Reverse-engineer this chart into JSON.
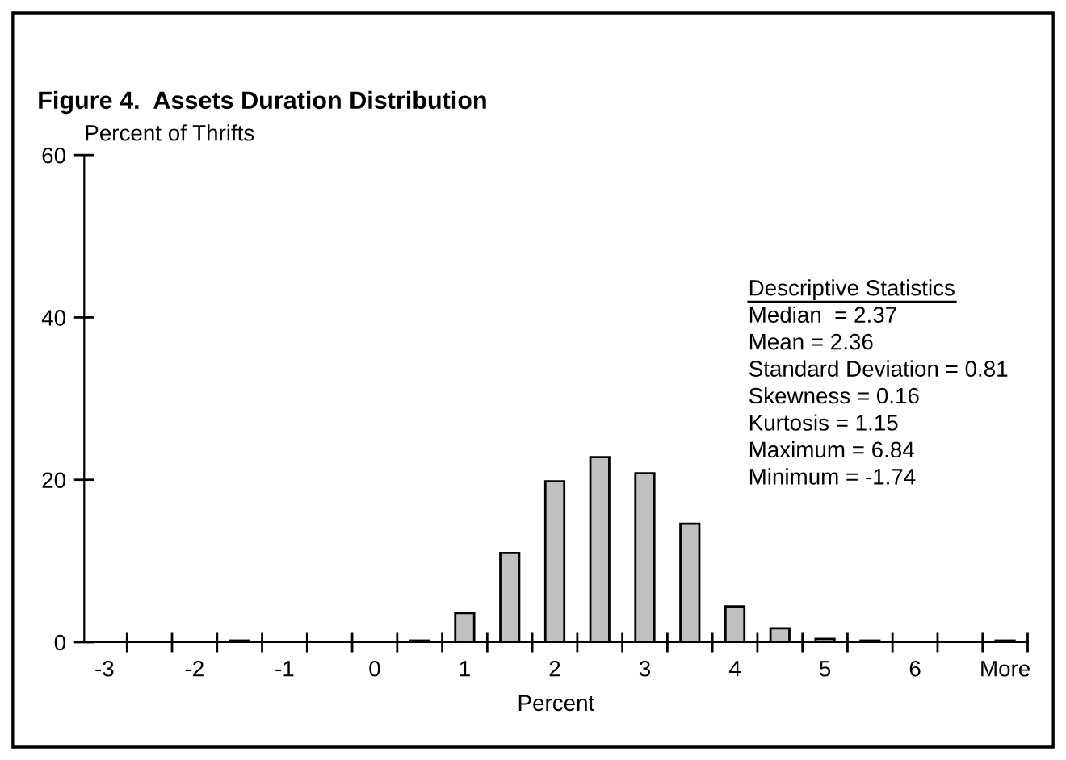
{
  "chart_data": {
    "type": "bar",
    "title": "Figure 4.  Assets Duration Distribution",
    "xlabel": "Percent",
    "ylabel": "Percent of Thrifts",
    "categories": [
      "-3",
      null,
      "-2",
      null,
      "-1",
      null,
      "0",
      null,
      "1",
      null,
      "2",
      null,
      "3",
      null,
      "4",
      null,
      "5",
      null,
      "6",
      null,
      "More"
    ],
    "values": [
      0,
      0,
      0,
      0.2,
      0,
      0,
      0,
      0.2,
      3.6,
      11,
      19.8,
      22.8,
      20.8,
      14.6,
      4.4,
      1.7,
      0.4,
      0.2,
      0,
      0,
      0.2
    ],
    "color": "#c0c0c0",
    "ylim": [
      0,
      60
    ],
    "yticks": [
      0,
      20,
      40,
      60
    ],
    "grid": false,
    "legend": false,
    "annotations": [
      "Descriptive Statistics",
      "Median  = 2.37",
      "Mean = 2.36",
      "Standard Deviation = 0.81",
      "Skewness = 0.16",
      "Kurtosis = 1.15",
      "Maximum = 6.84",
      "Minimum = -1.74"
    ]
  }
}
